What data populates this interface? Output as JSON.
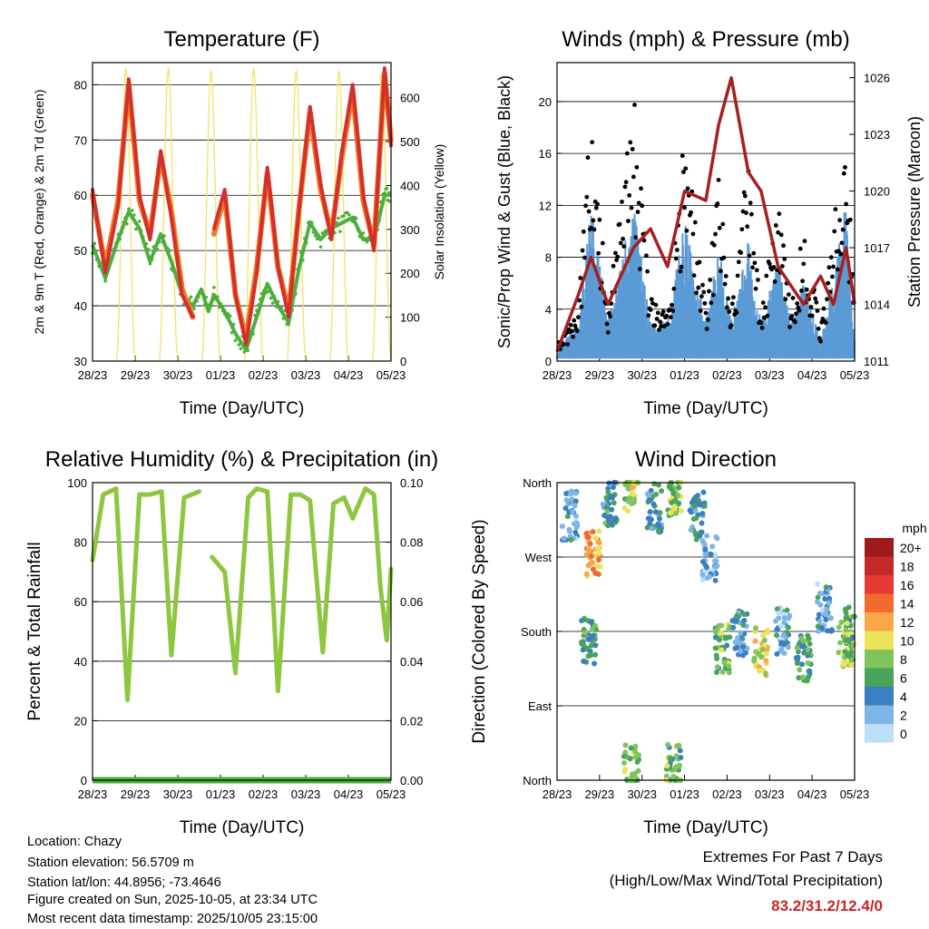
{
  "time_axis": {
    "ticks": [
      "28/23",
      "29/23",
      "30/23",
      "01/23",
      "02/23",
      "03/23",
      "04/23",
      "05/23"
    ],
    "xlabel": "Time (Day/UTC)"
  },
  "colors": {
    "temp_red": "#d32f2f",
    "temp_orange": "#f57c20",
    "dewpoint_green": "#4caf3c",
    "solar_yellow": "#f2e26a",
    "gust_black": "#000000",
    "wind_blue": "#5b9bd5",
    "pressure_maroon": "#a52020",
    "rh_green": "#8dc63f",
    "precip_green": "#4caf3c",
    "extremes_red": "#c62828"
  },
  "chart_data": [
    {
      "id": "temperature",
      "type": "line",
      "title": "Temperature (F)",
      "ylabel": "2m & 9m T (Red, Orange) & 2m Td (Green)",
      "ylabel_right": "Solar Insolation (Yellow)",
      "ylim": [
        30,
        84
      ],
      "yticks": [
        30,
        40,
        50,
        60,
        70,
        80
      ],
      "ylim_right": [
        0,
        680
      ],
      "yticks_right": [
        0,
        100,
        200,
        300,
        400,
        500,
        600
      ],
      "x_days": [
        0,
        0.3,
        0.6,
        0.85,
        1.1,
        1.35,
        1.6,
        1.85,
        2.1,
        2.35,
        2.55,
        2.72,
        2.85,
        3.1,
        3.35,
        3.6,
        3.85,
        4.1,
        4.35,
        4.6,
        4.85,
        5.1,
        5.35,
        5.6,
        5.85,
        6.1,
        6.35,
        6.6,
        6.85,
        7.0
      ],
      "series": [
        {
          "name": "2m T",
          "color": "#d32f2f",
          "values": [
            61,
            46,
            58,
            81,
            60,
            52,
            68,
            56,
            42,
            38,
            null,
            null,
            54,
            61,
            42,
            33,
            46,
            65,
            47,
            38,
            58,
            76,
            62,
            52,
            68,
            80,
            60,
            50,
            83,
            69
          ]
        },
        {
          "name": "9m T",
          "color": "#f57c20",
          "values": [
            60,
            47,
            59,
            80,
            59,
            53,
            67,
            57,
            43,
            38,
            null,
            null,
            53,
            60,
            42,
            34,
            47,
            64,
            47,
            39,
            58,
            75,
            61,
            53,
            67,
            79,
            59,
            51,
            82,
            70
          ]
        },
        {
          "name": "2m Td",
          "color": "#4caf3c",
          "values": [
            51,
            45,
            52,
            57,
            54,
            48,
            53,
            48,
            42,
            40,
            43,
            39,
            42,
            39,
            35,
            32,
            38,
            44,
            40,
            37,
            47,
            55,
            52,
            54,
            55,
            56,
            52,
            52,
            60,
            60
          ]
        },
        {
          "name": "Solar Insolation",
          "color": "#f2e26a",
          "peak_values": [
            665,
            665,
            660,
            665,
            660,
            660,
            655
          ],
          "peak_days": [
            0.78,
            1.78,
            2.78,
            3.78,
            4.78,
            5.78,
            6.78
          ]
        }
      ]
    },
    {
      "id": "winds",
      "type": "scatter",
      "title": "Winds (mph) & Pressure (mb)",
      "ylabel": "Sonic/Prop Wind & Gust (Blue, Black)",
      "ylabel_right": "Station Pressure (Maroon)",
      "ylim": [
        0,
        23
      ],
      "yticks": [
        0,
        4,
        8,
        12,
        16,
        20
      ],
      "ylim_right": [
        1011,
        1026.8
      ],
      "yticks_right": [
        1011,
        1014,
        1017,
        1020,
        1023,
        1026
      ],
      "x_days": [
        0,
        0.5,
        0.8,
        1.2,
        1.8,
        2.2,
        2.6,
        3.0,
        3.5,
        3.8,
        4.1,
        4.5,
        4.8,
        5.2,
        5.5,
        5.8,
        6.2,
        6.5,
        6.8,
        7.0
      ],
      "series": [
        {
          "name": "Gust",
          "color": "#000000",
          "values": [
            1,
            3,
            16,
            3,
            16,
            4,
            3,
            14,
            3,
            12,
            3,
            13,
            3,
            10,
            3,
            8,
            2,
            8,
            15,
            2
          ]
        },
        {
          "name": "Wind",
          "color": "#5b9bd5",
          "values": [
            0.5,
            2,
            8,
            2,
            8,
            2,
            2,
            7,
            2,
            6,
            2,
            6,
            2,
            5,
            2,
            4,
            1,
            4,
            8,
            1
          ]
        },
        {
          "name": "Station Pressure",
          "color": "#a52020",
          "values": [
            1011.5,
            1014.5,
            1016.5,
            1014,
            1017,
            1018,
            1016,
            1020,
            1019.5,
            1023.5,
            1026,
            1021,
            1020,
            1016,
            1015,
            1014,
            1015.5,
            1014,
            1017,
            1014
          ]
        }
      ]
    },
    {
      "id": "humidity",
      "type": "line",
      "title": "Relative Humidity (%) & Precipitation (in)",
      "ylabel": "Percent & Total Rainfall",
      "ylim": [
        0,
        100
      ],
      "yticks": [
        0,
        20,
        40,
        60,
        80,
        100
      ],
      "ylim_right": [
        0,
        0.1
      ],
      "yticks_right": [
        "0.00",
        "0.02",
        "0.04",
        "0.06",
        "0.08",
        "0.10"
      ],
      "x_days": [
        0,
        0.25,
        0.55,
        0.82,
        1.1,
        1.35,
        1.62,
        1.85,
        2.15,
        2.5,
        2.65,
        2.8,
        3.1,
        3.35,
        3.65,
        3.85,
        4.1,
        4.35,
        4.65,
        4.88,
        5.1,
        5.4,
        5.65,
        5.9,
        6.1,
        6.4,
        6.6,
        6.75,
        6.9,
        7.0
      ],
      "series": [
        {
          "name": "Relative Humidity",
          "color": "#8dc63f",
          "values": [
            74,
            96,
            98,
            27,
            96,
            96,
            97,
            42,
            95,
            97,
            null,
            75,
            70,
            36,
            95,
            98,
            97,
            30,
            96,
            96,
            94,
            43,
            93,
            95,
            88,
            98,
            96,
            65,
            47,
            71
          ]
        },
        {
          "name": "Precipitation",
          "color": "#4caf3c",
          "values": [
            0,
            0,
            0,
            0,
            0,
            0,
            0,
            0,
            0,
            0,
            0,
            0,
            0,
            0,
            0,
            0,
            0,
            0,
            0,
            0,
            0,
            0,
            0,
            0,
            0,
            0,
            0,
            0,
            0,
            0
          ]
        }
      ]
    },
    {
      "id": "direction",
      "type": "scatter",
      "title": "Wind Direction",
      "ylabel": "Direction (Colored By Speed)",
      "ylim": [
        0,
        360
      ],
      "ytick_values": [
        0,
        90,
        180,
        270,
        360
      ],
      "yticks": [
        "North",
        "East",
        "South",
        "West",
        "North"
      ],
      "legend_title": "mph",
      "legend_labels": [
        "20+",
        "18",
        "16",
        "14",
        "12",
        "10",
        "8",
        "6",
        "4",
        "2",
        "0"
      ],
      "legend_colors": [
        "#9e1b1b",
        "#c62828",
        "#e53935",
        "#f26a2e",
        "#f9a74a",
        "#ece35a",
        "#7fc45a",
        "#49a35a",
        "#3a7fc2",
        "#7fb5e6",
        "#bde0f6"
      ],
      "clusters": [
        {
          "day": 0.3,
          "dir": 320,
          "speed": 3
        },
        {
          "day": 0.85,
          "dir": 275,
          "speed": 12
        },
        {
          "day": 0.75,
          "dir": 170,
          "speed": 6
        },
        {
          "day": 1.25,
          "dir": 335,
          "speed": 5
        },
        {
          "day": 1.75,
          "dir": 355,
          "speed": 9
        },
        {
          "day": 1.75,
          "dir": 15,
          "speed": 7
        },
        {
          "day": 2.3,
          "dir": 330,
          "speed": 4
        },
        {
          "day": 2.75,
          "dir": 350,
          "speed": 8
        },
        {
          "day": 2.75,
          "dir": 15,
          "speed": 7
        },
        {
          "day": 3.3,
          "dir": 320,
          "speed": 4
        },
        {
          "day": 3.6,
          "dir": 270,
          "speed": 2
        },
        {
          "day": 3.9,
          "dir": 160,
          "speed": 7
        },
        {
          "day": 4.3,
          "dir": 180,
          "speed": 4
        },
        {
          "day": 4.8,
          "dir": 155,
          "speed": 10
        },
        {
          "day": 5.3,
          "dir": 180,
          "speed": 3
        },
        {
          "day": 5.8,
          "dir": 145,
          "speed": 6
        },
        {
          "day": 6.3,
          "dir": 210,
          "speed": 3
        },
        {
          "day": 6.8,
          "dir": 165,
          "speed": 8
        },
        {
          "day": 6.95,
          "dir": 180,
          "speed": 7
        }
      ]
    }
  ],
  "info": {
    "location": "Location: Chazy",
    "elevation": "Station elevation: 56.5709 m",
    "latlon": "Station lat/lon: 44.8956; -73.4646",
    "created": "Figure created on Sun, 2025-10-05, at 23:34 UTC",
    "recent": "Most recent data timestamp: 2025/10/05 23:15:00"
  },
  "extremes": {
    "title": "Extremes For Past 7 Days",
    "subtitle": "(High/Low/Max Wind/Total Precipitation)",
    "values": "83.2/31.2/12.4/0"
  }
}
